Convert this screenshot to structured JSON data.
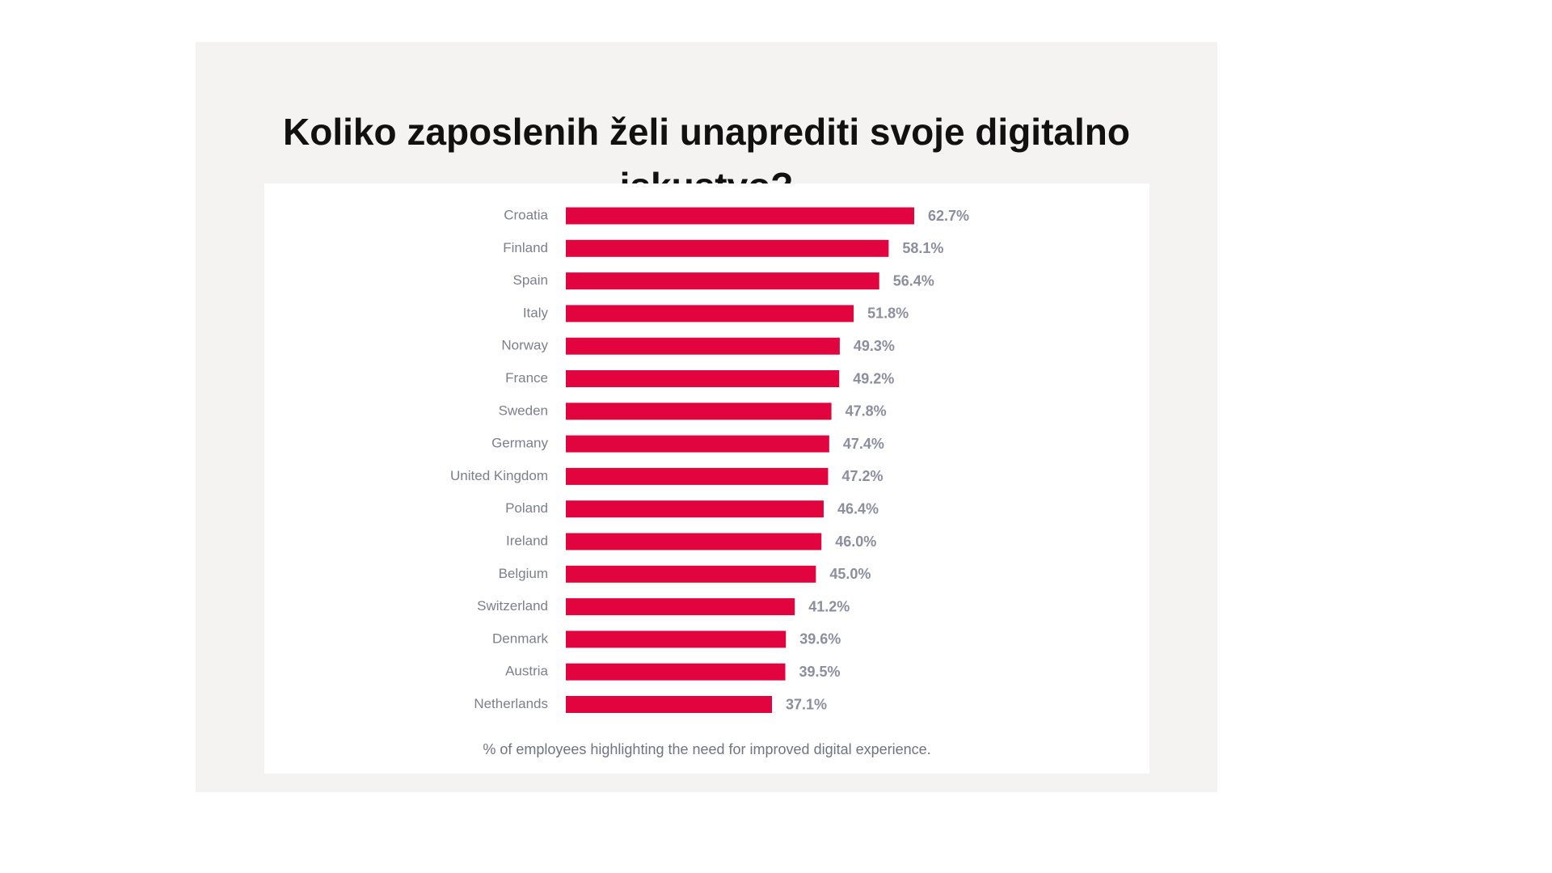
{
  "title_lines": [
    "Koliko zaposlenih želi unaprediti svoje digitalno",
    "iskustvo?"
  ],
  "footnote": "% of employees highlighting the need for improved digital experience.",
  "chart_data": {
    "type": "bar",
    "orientation": "horizontal",
    "categories": [
      "Croatia",
      "Finland",
      "Spain",
      "Italy",
      "Norway",
      "France",
      "Sweden",
      "Germany",
      "United Kingdom",
      "Poland",
      "Ireland",
      "Belgium",
      "Switzerland",
      "Denmark",
      "Austria",
      "Netherlands"
    ],
    "values": [
      62.7,
      58.1,
      56.4,
      51.8,
      49.3,
      49.2,
      47.8,
      47.4,
      47.2,
      46.4,
      46.0,
      45.0,
      41.2,
      39.6,
      39.5,
      37.1
    ],
    "value_labels": [
      "62.7%",
      "58.1%",
      "56.4%",
      "51.8%",
      "49.3%",
      "49.2%",
      "47.8%",
      "47.4%",
      "47.2%",
      "46.4%",
      "46.0%",
      "45.0%",
      "41.2%",
      "39.6%",
      "39.5%",
      "37.1%"
    ],
    "title": "Koliko zaposlenih želi unaprediti svoje digitalno iskustvo?",
    "xlabel": "% of employees highlighting the need for improved digital experience.",
    "ylabel": "",
    "xlim": [
      0,
      62.7
    ],
    "grid": false,
    "legend": "none",
    "bar_color": "#e2043f"
  }
}
